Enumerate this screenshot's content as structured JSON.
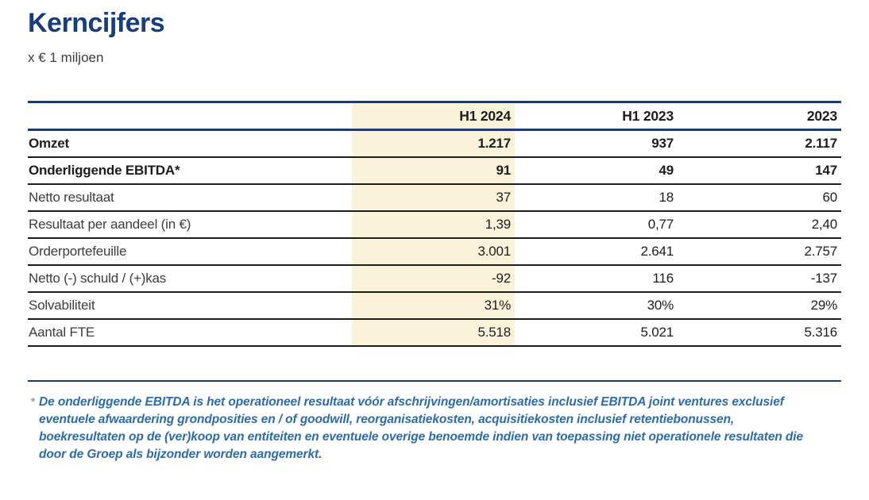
{
  "page": {
    "title": "Kerncijfers",
    "subtitle": "x € 1 miljoen"
  },
  "table": {
    "columns": [
      "",
      "H1 2024",
      "H1 2023",
      "2023"
    ],
    "highlighted_column": "H1 2024",
    "rows": [
      {
        "label": "Omzet",
        "values": [
          "1.217",
          "937",
          "2.117"
        ],
        "emphasis": true
      },
      {
        "label": "Onderliggende EBITDA*",
        "values": [
          "91",
          "49",
          "147"
        ],
        "emphasis": true
      },
      {
        "label": "Netto resultaat",
        "values": [
          "37",
          "18",
          "60"
        ],
        "emphasis": false
      },
      {
        "label": "Resultaat per aandeel (in €)",
        "values": [
          "1,39",
          "0,77",
          "2,40"
        ],
        "emphasis": false
      },
      {
        "label": "Orderportefeuille",
        "values": [
          "3.001",
          "2.641",
          "2.757"
        ],
        "emphasis": false
      },
      {
        "label": "Netto (-) schuld / (+)kas",
        "values": [
          "-92",
          "116",
          "-137"
        ],
        "emphasis": false
      },
      {
        "label": "Solvabiliteit",
        "values": [
          "31%",
          "30%",
          "29%"
        ],
        "emphasis": false
      },
      {
        "label": "Aantal FTE",
        "values": [
          "5.518",
          "5.021",
          "5.316"
        ],
        "emphasis": false
      }
    ]
  },
  "footnote": {
    "marker": "*",
    "text": "De onderliggende EBITDA is het operationeel resultaat vóór afschrijvingen/amortisaties inclusief EBITDA joint ventures exclusief eventuele afwaardering grondposities en / of goodwill, reorganisatiekosten, acquisitiekosten inclusief retentiebonussen, boekresultaten op de (ver)koop van entiteiten en eventuele overige benoemde indien van toepassing niet operationele resultaten die door de Groep als bijzonder worden aangemerkt."
  },
  "colors": {
    "navy": "#1d3c6e",
    "title_navy": "#173d7a",
    "highlight": "#faf3da",
    "rule_dark": "#1d1d1b",
    "label_text": "#3d3d3b",
    "value_text": "#1d1d1b",
    "footnote_blue": "#2d6ba8",
    "marker_gray": "#9aa6b8"
  }
}
